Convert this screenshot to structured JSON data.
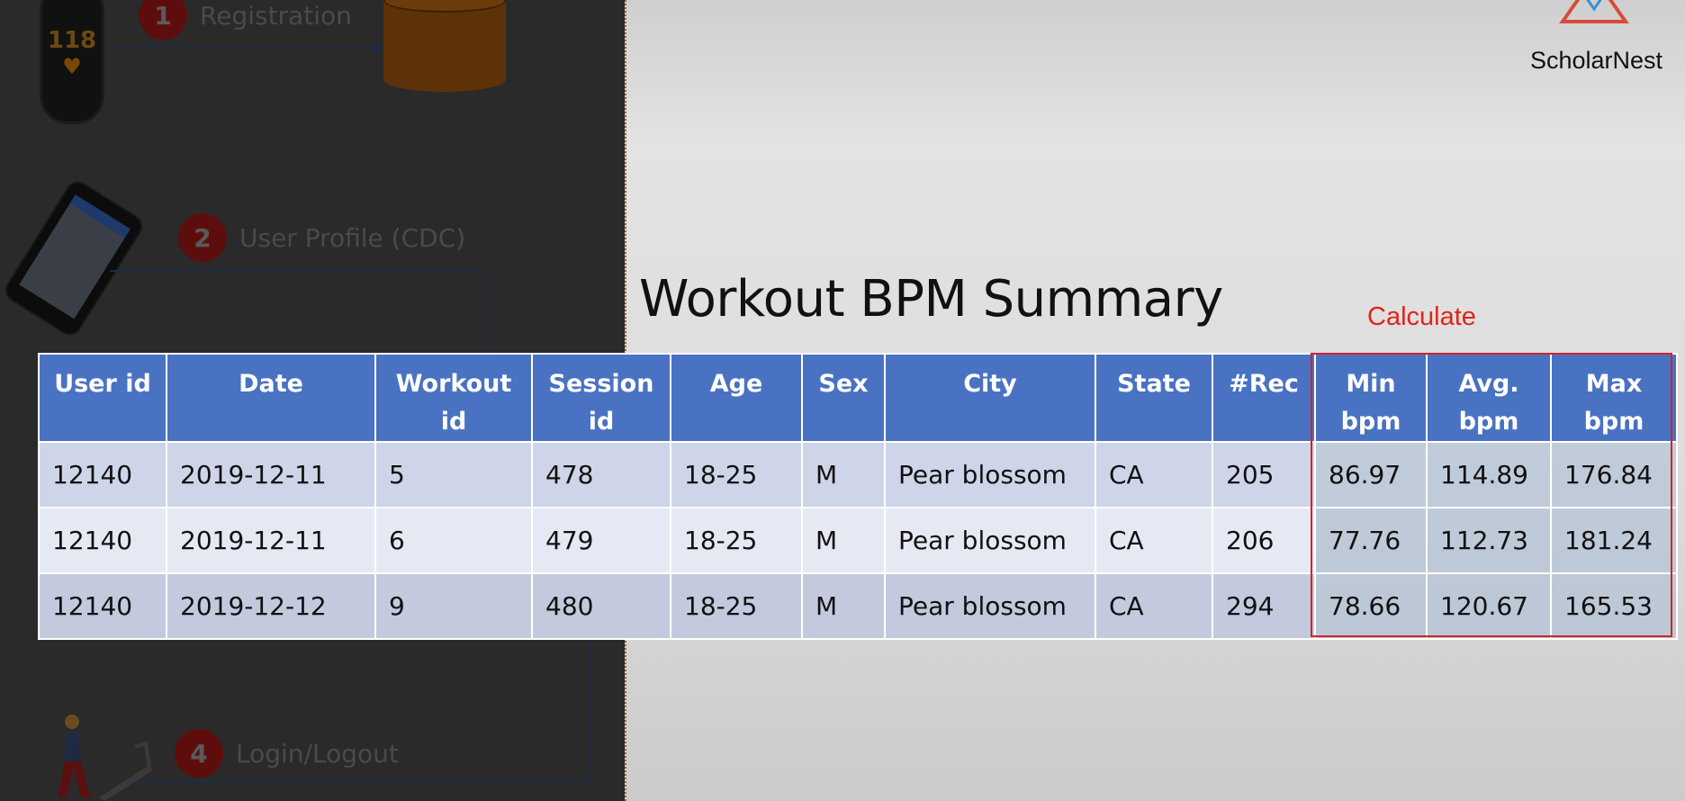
{
  "diagram": {
    "watch_value": "118",
    "steps": [
      {
        "number": "1",
        "label": "Registration"
      },
      {
        "number": "2",
        "label": "User Profile (CDC)"
      },
      {
        "number": "4",
        "label": "Login/Logout"
      }
    ]
  },
  "logo": {
    "text": "ScholarNest",
    "icon": "triangle-logo-icon"
  },
  "title": "Workout BPM Summary",
  "calculate_label": "Calculate",
  "colors": {
    "header": "#4a72c2",
    "highlight": "#d2232a",
    "accent_text": "#e2231a"
  },
  "table": {
    "headers": [
      "User id",
      "Date",
      "Workout id",
      "Session id",
      "Age",
      "Sex",
      "City",
      "State",
      "#Rec",
      "Min bpm",
      "Avg. bpm",
      "Max bpm"
    ],
    "rows": [
      [
        "12140",
        "2019-12-11",
        "5",
        "478",
        "18-25",
        "M",
        "Pear blossom",
        "CA",
        "205",
        "86.97",
        "114.89",
        "176.84"
      ],
      [
        "12140",
        "2019-12-11",
        "6",
        "479",
        "18-25",
        "M",
        "Pear blossom",
        "CA",
        "206",
        "77.76",
        "112.73",
        "181.24"
      ],
      [
        "12140",
        "2019-12-12",
        "9",
        "480",
        "18-25",
        "M",
        "Pear blossom",
        "CA",
        "294",
        "78.66",
        "120.67",
        "165.53"
      ]
    ]
  }
}
